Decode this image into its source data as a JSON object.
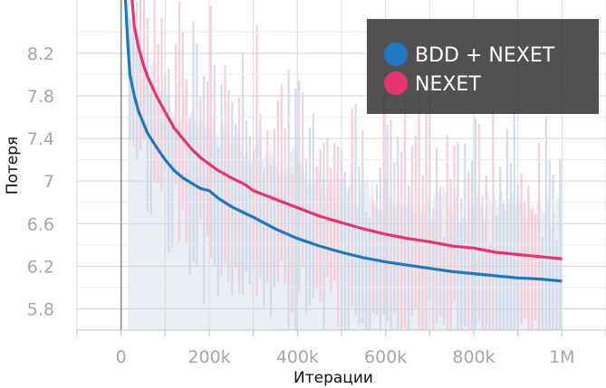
{
  "chart_data": {
    "type": "line",
    "xlabel": "Итерации",
    "ylabel": "Потеря",
    "x_tick_labels": [
      "0",
      "200k",
      "400k",
      "600k",
      "800k",
      "1M"
    ],
    "x_tick_values": [
      0,
      200000,
      400000,
      600000,
      800000,
      1000000
    ],
    "y_tick_labels": [
      "5.8",
      "6.2",
      "6.6",
      "7",
      "7.4",
      "7.8",
      "8.2"
    ],
    "y_tick_values": [
      5.8,
      6.2,
      6.6,
      7.0,
      7.4,
      7.8,
      8.2
    ],
    "xlim": [
      -100000,
      1100000
    ],
    "ylim": [
      5.6,
      8.7
    ],
    "grid": true,
    "legend_position": "top-right",
    "series": [
      {
        "name": "BDD + NEXET",
        "color": "#1f77c1",
        "x": [
          10000,
          15000,
          20000,
          30000,
          40000,
          50000,
          60000,
          80000,
          100000,
          120000,
          140000,
          160000,
          180000,
          200000,
          220000,
          250000,
          280000,
          300000,
          350000,
          400000,
          450000,
          500000,
          550000,
          600000,
          650000,
          700000,
          750000,
          800000,
          850000,
          900000,
          950000,
          1000000
        ],
        "values": [
          8.7,
          8.3,
          8.0,
          7.8,
          7.65,
          7.55,
          7.45,
          7.32,
          7.2,
          7.1,
          7.03,
          6.98,
          6.93,
          6.91,
          6.84,
          6.76,
          6.7,
          6.66,
          6.55,
          6.46,
          6.39,
          6.33,
          6.28,
          6.24,
          6.21,
          6.18,
          6.15,
          6.13,
          6.11,
          6.09,
          6.08,
          6.06
        ]
      },
      {
        "name": "NEXET",
        "color": "#e5356f",
        "x": [
          25000,
          30000,
          40000,
          50000,
          60000,
          80000,
          100000,
          120000,
          140000,
          160000,
          180000,
          200000,
          220000,
          250000,
          280000,
          300000,
          350000,
          400000,
          450000,
          500000,
          550000,
          600000,
          650000,
          700000,
          750000,
          800000,
          850000,
          900000,
          950000,
          1000000
        ],
        "values": [
          8.7,
          8.45,
          8.25,
          8.1,
          7.98,
          7.8,
          7.65,
          7.5,
          7.4,
          7.3,
          7.22,
          7.16,
          7.1,
          7.03,
          6.97,
          6.91,
          6.83,
          6.75,
          6.67,
          6.61,
          6.55,
          6.5,
          6.46,
          6.43,
          6.39,
          6.37,
          6.33,
          6.31,
          6.29,
          6.27
        ]
      }
    ]
  }
}
